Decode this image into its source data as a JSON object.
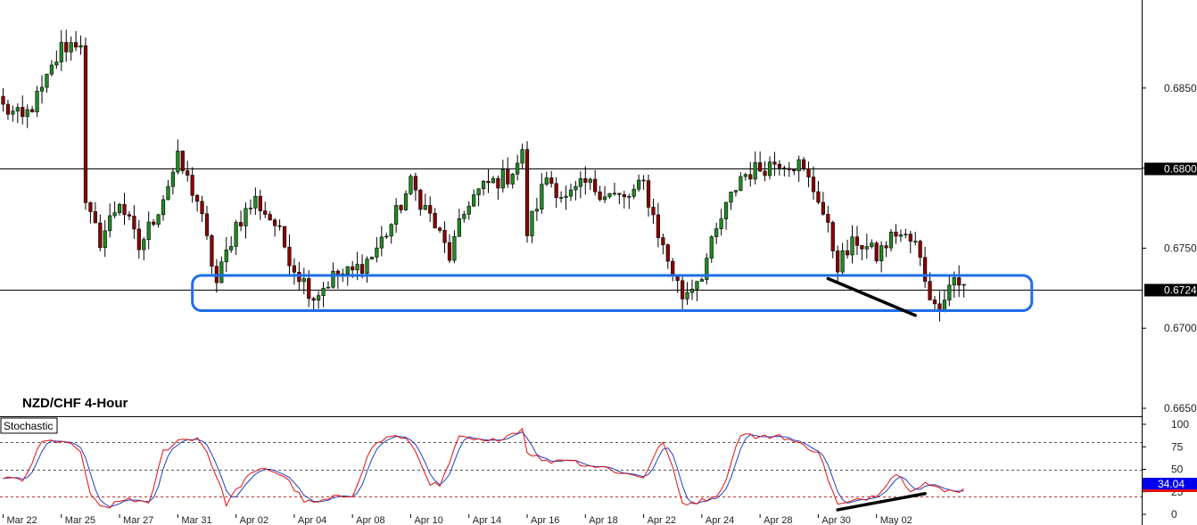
{
  "chart_data": [
    {
      "type": "candlestick",
      "title": "NZD/CHF 4-Hour",
      "ylim": [
        0.6645,
        0.6905
      ],
      "y_ticks": [
        "0.6850",
        "0.6800",
        "0.6750",
        "0.6700",
        "0.6650"
      ],
      "y_tick_values": [
        0.685,
        0.68,
        0.675,
        0.67,
        0.665
      ],
      "x_tick_labels": [
        "Mar 22",
        "Mar 25",
        "Mar 27",
        "Mar 31",
        "Apr 02",
        "Apr 04",
        "Apr 08",
        "Apr 10",
        "Apr 14",
        "Apr 16",
        "Apr 18",
        "Apr 22",
        "Apr 24",
        "Apr 28",
        "Apr 30",
        "May 02"
      ],
      "x_tick_index": [
        0,
        12,
        24,
        36,
        48,
        60,
        72,
        84,
        96,
        108,
        120,
        132,
        144,
        156,
        168,
        180
      ],
      "horizontal_lines": [
        {
          "value": 0.68,
          "label": "0.6800"
        },
        {
          "value": 0.6724,
          "label": "0.6724"
        }
      ],
      "support_box": {
        "y_top": 0.6733,
        "y_bottom": 0.6711,
        "x_start_index": 39,
        "x_end_index": 212
      },
      "trendline": {
        "x_start_index": 170,
        "y_start": 0.6731,
        "x_end_index": 188,
        "y_end": 0.6708
      },
      "anchors": [
        [
          0,
          0.6838
        ],
        [
          4,
          0.683
        ],
        [
          8,
          0.6848
        ],
        [
          12,
          0.6875
        ],
        [
          16,
          0.688
        ],
        [
          17,
          0.6775
        ],
        [
          20,
          0.6755
        ],
        [
          24,
          0.678
        ],
        [
          28,
          0.675
        ],
        [
          32,
          0.6775
        ],
        [
          36,
          0.6805
        ],
        [
          40,
          0.678
        ],
        [
          44,
          0.6728
        ],
        [
          48,
          0.6765
        ],
        [
          52,
          0.678
        ],
        [
          56,
          0.6765
        ],
        [
          60,
          0.6738
        ],
        [
          64,
          0.672
        ],
        [
          68,
          0.6732
        ],
        [
          72,
          0.6735
        ],
        [
          76,
          0.6745
        ],
        [
          80,
          0.6765
        ],
        [
          84,
          0.679
        ],
        [
          88,
          0.677
        ],
        [
          92,
          0.6745
        ],
        [
          96,
          0.678
        ],
        [
          100,
          0.679
        ],
        [
          104,
          0.6795
        ],
        [
          107,
          0.6808
        ],
        [
          108,
          0.676
        ],
        [
          112,
          0.6795
        ],
        [
          116,
          0.678
        ],
        [
          120,
          0.679
        ],
        [
          124,
          0.6785
        ],
        [
          128,
          0.678
        ],
        [
          132,
          0.679
        ],
        [
          136,
          0.675
        ],
        [
          140,
          0.672
        ],
        [
          144,
          0.6735
        ],
        [
          148,
          0.6768
        ],
        [
          152,
          0.6795
        ],
        [
          156,
          0.68
        ],
        [
          160,
          0.6805
        ],
        [
          164,
          0.6802
        ],
        [
          168,
          0.6782
        ],
        [
          172,
          0.674
        ],
        [
          176,
          0.6755
        ],
        [
          180,
          0.6745
        ],
        [
          184,
          0.676
        ],
        [
          188,
          0.6752
        ],
        [
          192,
          0.6712
        ],
        [
          196,
          0.6732
        ],
        [
          198,
          0.6725
        ]
      ],
      "candle_count": 199
    },
    {
      "type": "line",
      "title": "Stochastic",
      "ylim": [
        0,
        100
      ],
      "y_ticks": [
        "100",
        "75",
        "50",
        "25",
        "0"
      ],
      "y_tick_values": [
        100,
        75,
        50,
        25,
        0
      ],
      "levels": [
        80,
        50,
        20
      ],
      "current_value": "34.04",
      "trendline": {
        "x_start_index": 172,
        "y_start": 5,
        "x_end_index": 190,
        "y_end": 23
      },
      "series": [
        {
          "name": "",
          "color": "#e01010",
          "role": "main"
        },
        {
          "name": "",
          "color": "#2040c0",
          "role": "signal"
        }
      ],
      "main_anchors": [
        [
          0,
          42
        ],
        [
          4,
          36
        ],
        [
          8,
          80
        ],
        [
          12,
          82
        ],
        [
          16,
          70
        ],
        [
          18,
          20
        ],
        [
          20,
          8
        ],
        [
          22,
          9
        ],
        [
          26,
          18
        ],
        [
          30,
          10
        ],
        [
          33,
          70
        ],
        [
          36,
          82
        ],
        [
          40,
          85
        ],
        [
          42,
          70
        ],
        [
          46,
          12
        ],
        [
          50,
          40
        ],
        [
          54,
          52
        ],
        [
          58,
          42
        ],
        [
          62,
          15
        ],
        [
          64,
          12
        ],
        [
          68,
          18
        ],
        [
          72,
          22
        ],
        [
          76,
          75
        ],
        [
          80,
          88
        ],
        [
          84,
          80
        ],
        [
          88,
          35
        ],
        [
          90,
          30
        ],
        [
          94,
          85
        ],
        [
          100,
          80
        ],
        [
          105,
          90
        ],
        [
          107,
          95
        ],
        [
          108,
          70
        ],
        [
          112,
          58
        ],
        [
          116,
          62
        ],
        [
          120,
          55
        ],
        [
          124,
          52
        ],
        [
          128,
          45
        ],
        [
          132,
          42
        ],
        [
          136,
          82
        ],
        [
          138,
          50
        ],
        [
          140,
          12
        ],
        [
          144,
          15
        ],
        [
          148,
          25
        ],
        [
          152,
          90
        ],
        [
          156,
          85
        ],
        [
          160,
          88
        ],
        [
          164,
          78
        ],
        [
          168,
          70
        ],
        [
          170,
          40
        ],
        [
          172,
          10
        ],
        [
          176,
          15
        ],
        [
          180,
          22
        ],
        [
          184,
          46
        ],
        [
          187,
          28
        ],
        [
          190,
          35
        ],
        [
          194,
          25
        ],
        [
          196,
          27
        ]
      ]
    }
  ]
}
